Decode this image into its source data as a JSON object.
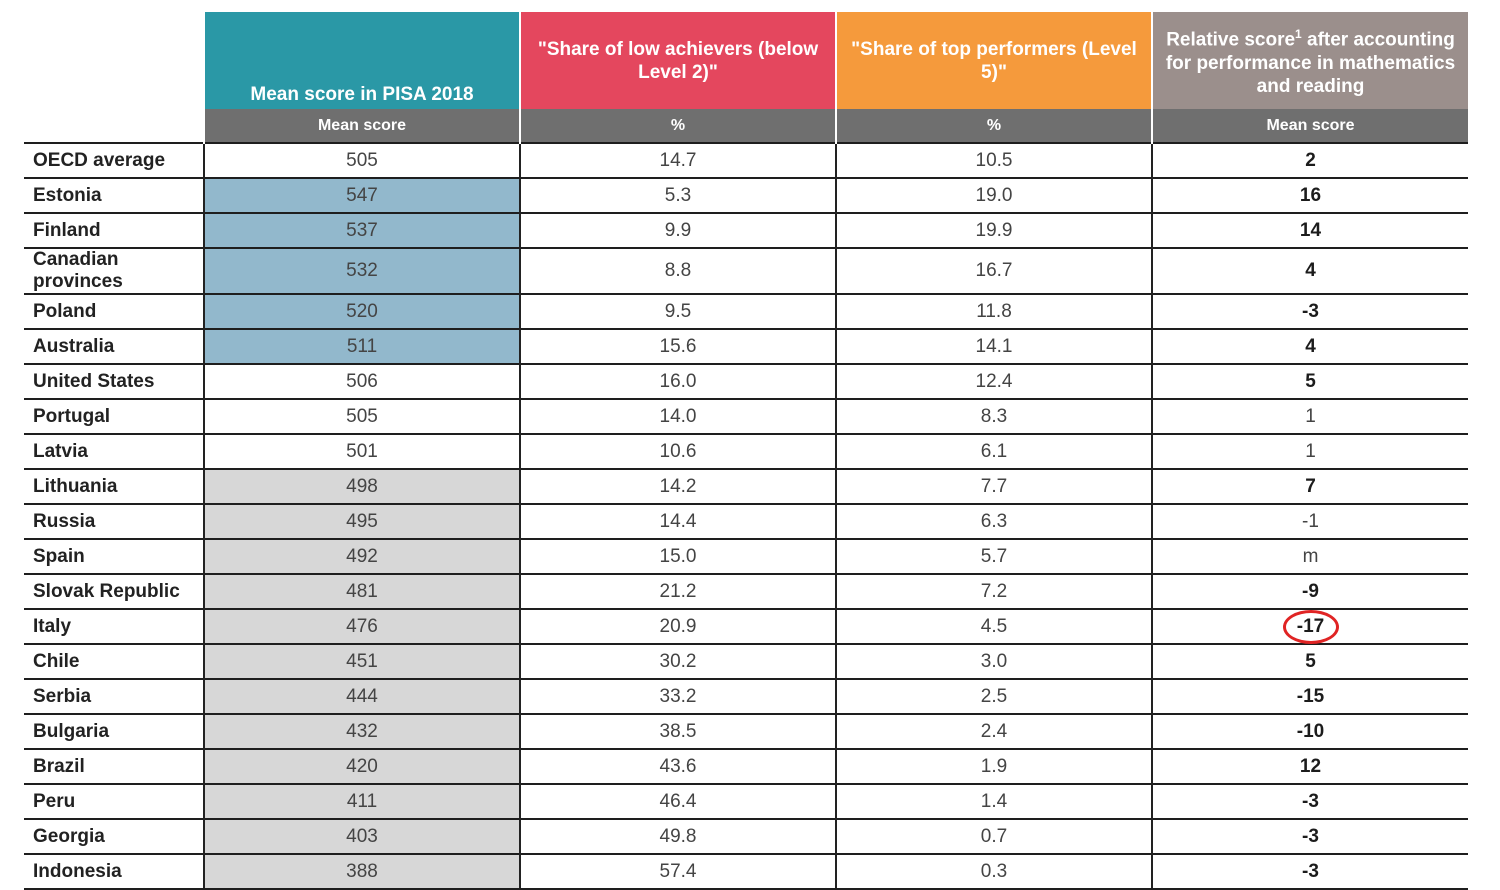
{
  "chart_data": {
    "type": "table",
    "columns": [
      {
        "header": "Mean score in PISA 2018",
        "sub": "Mean score",
        "color": "#2a98a6"
      },
      {
        "header": "\"Share of low achievers (below Level 2)\"",
        "sub": "%",
        "color": "#e4475e"
      },
      {
        "header": "\"Share of top performers (Level 5)\"",
        "sub": "%",
        "color": "#f59a3c"
      },
      {
        "header_main": "Relative score",
        "header_sup": "1",
        "header_rest": " after accounting for performance in mathematics and reading",
        "sub": "Mean score",
        "color": "#9b8f8c"
      }
    ],
    "rows": [
      {
        "country": "OECD average",
        "mean": "505",
        "low": "14.7",
        "top": "10.5",
        "rel": "2",
        "shade": "none",
        "rel_bold": true
      },
      {
        "country": "Estonia",
        "mean": "547",
        "low": "5.3",
        "top": "19.0",
        "rel": "16",
        "shade": "above",
        "rel_bold": true
      },
      {
        "country": "Finland",
        "mean": "537",
        "low": "9.9",
        "top": "19.9",
        "rel": "14",
        "shade": "above",
        "rel_bold": true
      },
      {
        "country": "Canadian provinces",
        "mean": "532",
        "low": "8.8",
        "top": "16.7",
        "rel": "4",
        "shade": "above",
        "rel_bold": true
      },
      {
        "country": "Poland",
        "mean": "520",
        "low": "9.5",
        "top": "11.8",
        "rel": "-3",
        "shade": "above",
        "rel_bold": true
      },
      {
        "country": "Australia",
        "mean": "511",
        "low": "15.6",
        "top": "14.1",
        "rel": "4",
        "shade": "above",
        "rel_bold": true
      },
      {
        "country": "United States",
        "mean": "506",
        "low": "16.0",
        "top": "12.4",
        "rel": "5",
        "shade": "none",
        "rel_bold": true
      },
      {
        "country": "Portugal",
        "mean": "505",
        "low": "14.0",
        "top": "8.3",
        "rel": "1",
        "shade": "none",
        "rel_bold": false
      },
      {
        "country": "Latvia",
        "mean": "501",
        "low": "10.6",
        "top": "6.1",
        "rel": "1",
        "shade": "none",
        "rel_bold": false
      },
      {
        "country": "Lithuania",
        "mean": "498",
        "low": "14.2",
        "top": "7.7",
        "rel": "7",
        "shade": "below",
        "rel_bold": true
      },
      {
        "country": "Russia",
        "mean": "495",
        "low": "14.4",
        "top": "6.3",
        "rel": "-1",
        "shade": "below",
        "rel_bold": false
      },
      {
        "country": "Spain",
        "mean": "492",
        "low": "15.0",
        "top": "5.7",
        "rel": "m",
        "shade": "below",
        "rel_bold": false
      },
      {
        "country": "Slovak Republic",
        "mean": "481",
        "low": "21.2",
        "top": "7.2",
        "rel": "-9",
        "shade": "below",
        "rel_bold": true
      },
      {
        "country": "Italy",
        "mean": "476",
        "low": "20.9",
        "top": "4.5",
        "rel": "-17",
        "shade": "below",
        "rel_bold": true,
        "circled": true
      },
      {
        "country": "Chile",
        "mean": "451",
        "low": "30.2",
        "top": "3.0",
        "rel": "5",
        "shade": "below",
        "rel_bold": true
      },
      {
        "country": "Serbia",
        "mean": "444",
        "low": "33.2",
        "top": "2.5",
        "rel": "-15",
        "shade": "below",
        "rel_bold": true
      },
      {
        "country": "Bulgaria",
        "mean": "432",
        "low": "38.5",
        "top": "2.4",
        "rel": "-10",
        "shade": "below",
        "rel_bold": true
      },
      {
        "country": "Brazil",
        "mean": "420",
        "low": "43.6",
        "top": "1.9",
        "rel": "12",
        "shade": "below",
        "rel_bold": true
      },
      {
        "country": "Peru",
        "mean": "411",
        "low": "46.4",
        "top": "1.4",
        "rel": "-3",
        "shade": "below",
        "rel_bold": true
      },
      {
        "country": "Georgia",
        "mean": "403",
        "low": "49.8",
        "top": "0.7",
        "rel": "-3",
        "shade": "below",
        "rel_bold": true
      },
      {
        "country": "Indonesia",
        "mean": "388",
        "low": "57.4",
        "top": "0.3",
        "rel": "-3",
        "shade": "below",
        "rel_bold": true
      }
    ],
    "colors": {
      "above": "#92b8cc",
      "below": "#d7d7d7",
      "circle": "#e02424"
    }
  }
}
